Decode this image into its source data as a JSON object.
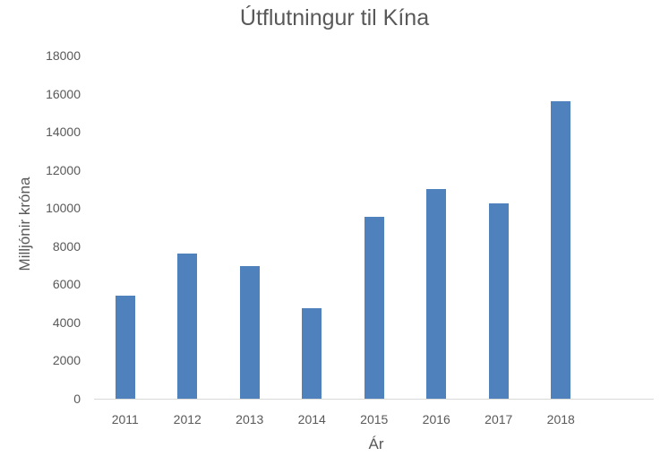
{
  "chart_data": {
    "type": "bar",
    "title": "Útflutningur til Kína",
    "xlabel": "Ár",
    "ylabel": "Milljónir króna",
    "categories": [
      "2011",
      "2012",
      "2013",
      "2014",
      "2015",
      "2016",
      "2017",
      "2018"
    ],
    "values": [
      5400,
      7600,
      6950,
      4750,
      9550,
      11000,
      10250,
      15600
    ],
    "yticks": [
      "0",
      "2000",
      "4000",
      "6000",
      "8000",
      "10000",
      "12000",
      "14000",
      "16000",
      "18000"
    ],
    "ylim": [
      0,
      18000
    ],
    "grid": false,
    "legend": null,
    "bar_color": "#4f81bd"
  }
}
